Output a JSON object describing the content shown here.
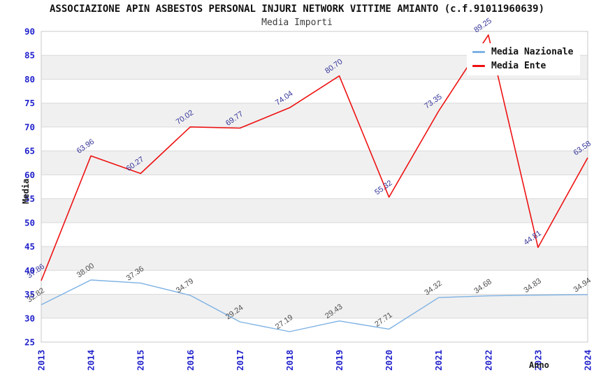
{
  "chart_data": {
    "type": "line",
    "title": "ASSOCIAZIONE APIN ASBESTOS PERSONAL INJURI NETWORK VITTIME AMIANTO (c.f.91011960639)",
    "subtitle": "Media Importi",
    "xlabel": "Anno",
    "ylabel": "Media",
    "x": [
      "2013",
      "2014",
      "2015",
      "2016",
      "2017",
      "2018",
      "2019",
      "2020",
      "2021",
      "2022",
      "2023",
      "2024"
    ],
    "ylim": [
      25,
      90
    ],
    "ytick_step": 5,
    "yticks": [
      25,
      30,
      35,
      40,
      45,
      50,
      55,
      60,
      65,
      70,
      75,
      80,
      85,
      90
    ],
    "grid": "horizontal-gridlines-with-alternating-bands",
    "legend_position": "top-right",
    "series": [
      {
        "name": "Media Nazionale",
        "color": "#7EB2E4",
        "label_color": "#4d4d4d",
        "values": [
          32.82,
          38.0,
          37.36,
          34.79,
          29.24,
          27.19,
          29.43,
          27.71,
          34.32,
          34.68,
          34.83,
          34.94
        ]
      },
      {
        "name": "Media Ente",
        "color": "#EE1111",
        "label_color": "#333399",
        "values": [
          37.86,
          63.96,
          60.27,
          70.02,
          69.77,
          74.04,
          80.7,
          55.32,
          73.35,
          89.25,
          44.81,
          63.58
        ]
      }
    ]
  },
  "style_colors": {
    "axis_tick_text": "#2222CC",
    "band_gray": "#F0F0F0",
    "band_white": "#FFFFFF",
    "gridline": "#D9D9D9",
    "plot_frame": "#C9C9C9",
    "background": "#FFFFFF"
  }
}
